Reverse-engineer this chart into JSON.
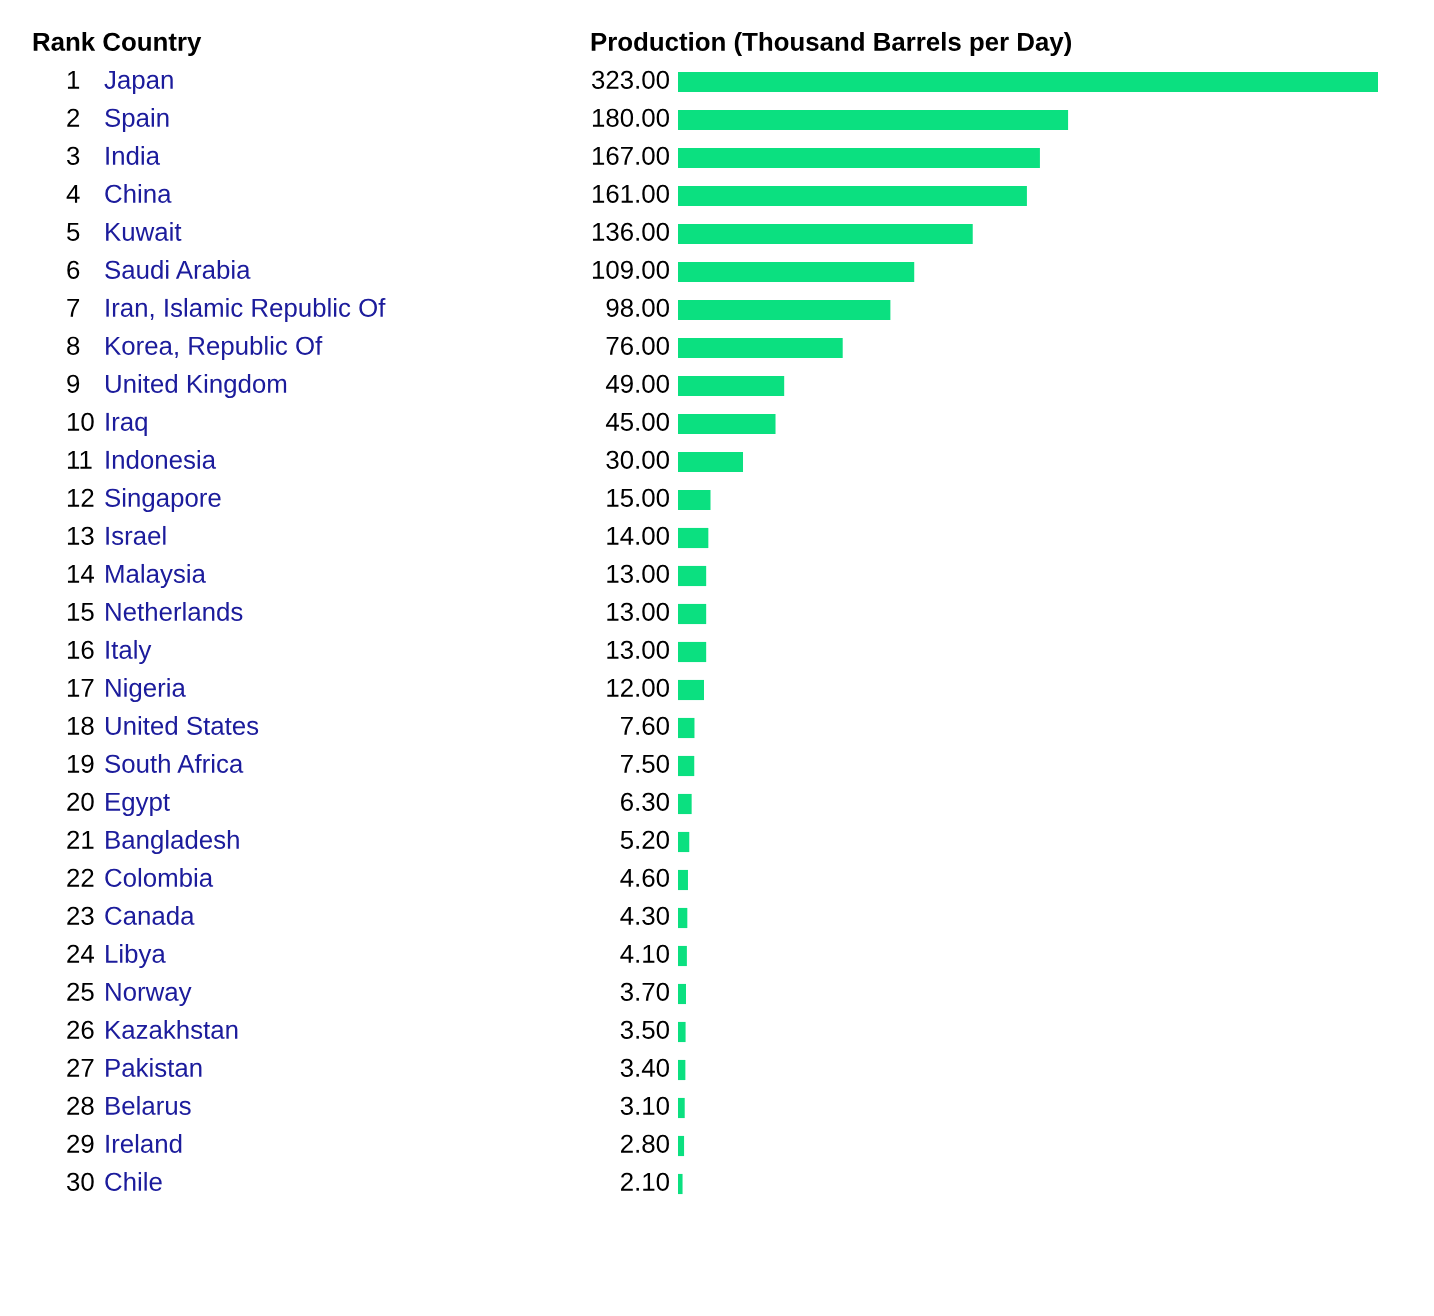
{
  "chart_data": {
    "type": "bar",
    "orientation": "horizontal",
    "ylabel": "Rank Country",
    "xlabel": "Production (Thousand Barrels per Day)",
    "categories": [
      "1 Japan",
      "2 Spain",
      "3 India",
      "4 China",
      "5 Kuwait",
      "6 Saudi Arabia",
      "7 Iran, Islamic Republic Of",
      "8 Korea, Republic Of",
      "9 United Kingdom",
      "10 Iraq",
      "11 Indonesia",
      "12 Singapore",
      "13 Israel",
      "14 Malaysia",
      "15 Netherlands",
      "16 Italy",
      "17 Nigeria",
      "18 United States",
      "19 South Africa",
      "20 Egypt",
      "21 Bangladesh",
      "22 Colombia",
      "23 Canada",
      "24 Libya",
      "25 Norway",
      "26 Kazakhstan",
      "27 Pakistan",
      "28 Belarus",
      "29 Ireland",
      "30 Chile"
    ],
    "values": [
      323,
      180,
      167,
      161,
      136,
      109,
      98,
      76,
      49,
      45,
      30,
      15,
      14,
      13,
      13,
      13,
      12,
      7.6,
      7.5,
      6.3,
      5.2,
      4.6,
      4.3,
      4.1,
      3.7,
      3.5,
      3.4,
      3.1,
      2.8,
      2.1
    ],
    "value_labels": [
      "323.00",
      "180.00",
      "167.00",
      "161.00",
      "136.00",
      "109.00",
      "98.00",
      "76.00",
      "49.00",
      "45.00",
      "30.00",
      "15.00",
      "14.00",
      "13.00",
      "13.00",
      "13.00",
      "12.00",
      "7.60",
      "7.50",
      "6.30",
      "5.20",
      "4.60",
      "4.30",
      "4.10",
      "3.70",
      "3.50",
      "3.40",
      "3.10",
      "2.80",
      "2.10"
    ],
    "color": "#0be080"
  }
}
